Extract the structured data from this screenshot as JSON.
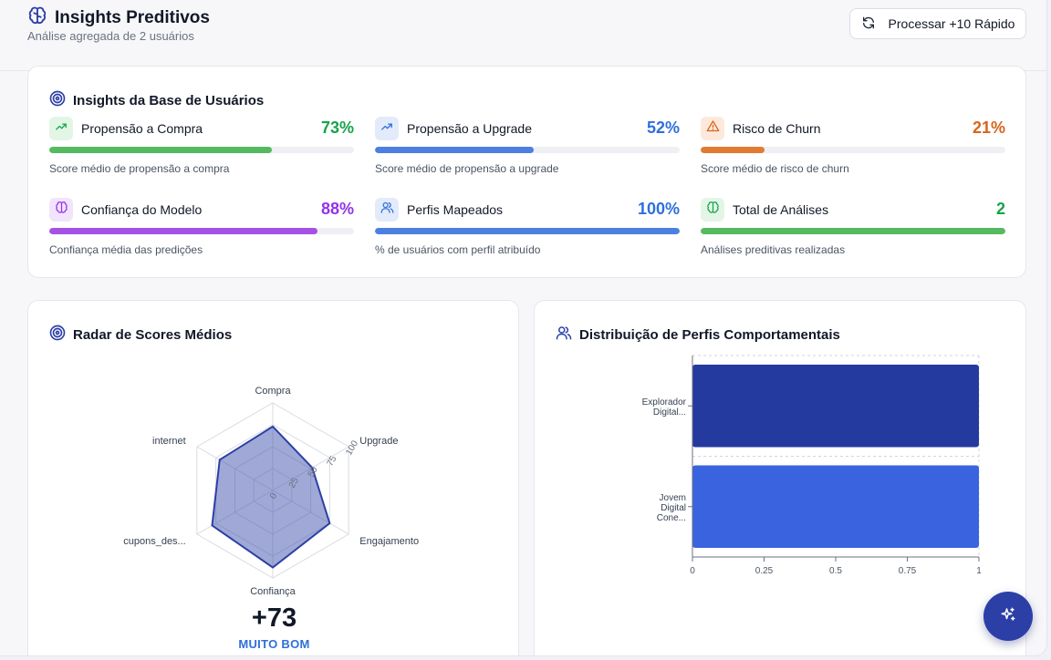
{
  "header": {
    "title": "Insights Preditivos",
    "subtitle": "Análise agregada de 2 usuários",
    "process_button": "Processar +10 Rápido"
  },
  "base_insights": {
    "title": "Insights da Base de Usuários",
    "metrics": [
      {
        "label": "Propensão a Compra",
        "value": "73%",
        "percent": 73,
        "desc": "Score médio de propensão a compra",
        "color": "#16a34a",
        "bar": "#55b960",
        "bg": "#e3f6e6",
        "icon": "trending-up-icon"
      },
      {
        "label": "Propensão a Upgrade",
        "value": "52%",
        "percent": 52,
        "desc": "Score médio de propensão a upgrade",
        "color": "#2f6fdb",
        "bar": "#4d7fe0",
        "bg": "#e3ebfb",
        "icon": "trending-up-icon"
      },
      {
        "label": "Risco de Churn",
        "value": "21%",
        "percent": 21,
        "desc": "Score médio de risco de churn",
        "color": "#d8641e",
        "bar": "#e07b32",
        "bg": "#fde9dc",
        "icon": "warning-icon"
      },
      {
        "label": "Confiança do Modelo",
        "value": "88%",
        "percent": 88,
        "desc": "Confiança média das predições",
        "color": "#9333ea",
        "bar": "#a452e6",
        "bg": "#f1e4fb",
        "icon": "brain-icon"
      },
      {
        "label": "Perfis Mapeados",
        "value": "100%",
        "percent": 100,
        "desc": "% de usuários com perfil atribuído",
        "color": "#2f6fdb",
        "bar": "#4d7fe0",
        "bg": "#e3ebfb",
        "icon": "users-icon"
      },
      {
        "label": "Total de Análises",
        "value": "2",
        "percent": 100,
        "desc": "Análises preditivas realizadas",
        "color": "#16a34a",
        "bar": "#55b960",
        "bg": "#e3f6e6",
        "icon": "brain-icon"
      }
    ]
  },
  "radar": {
    "title": "Radar de Scores Médios",
    "score": "+73",
    "rating": "MUITO BOM"
  },
  "distribution": {
    "title": "Distribuição de Perfis Comportamentais"
  },
  "chart_data": [
    {
      "type": "radar",
      "title": "Radar de Scores Médios",
      "axes": [
        "Compra",
        "Upgrade",
        "Engajamento",
        "Confiança",
        "cupons_des...",
        "internet"
      ],
      "values": [
        73,
        52,
        75,
        88,
        80,
        70
      ],
      "radial_ticks": [
        "0",
        "25",
        "50",
        "75",
        "100"
      ],
      "range": [
        0,
        100
      ],
      "color": "#2c3fa6"
    },
    {
      "type": "bar",
      "orientation": "horizontal",
      "title": "Distribuição de Perfis Comportamentais",
      "categories": [
        [
          "Explorador",
          "Digital..."
        ],
        [
          "Jovem",
          "Digital",
          "Cone..."
        ]
      ],
      "values": [
        1,
        1
      ],
      "colors": [
        "#243a9e",
        "#3a63e0"
      ],
      "x_ticks": [
        "0",
        "0.25",
        "0.5",
        "0.75",
        "1"
      ],
      "xlim": [
        0,
        1
      ]
    }
  ]
}
